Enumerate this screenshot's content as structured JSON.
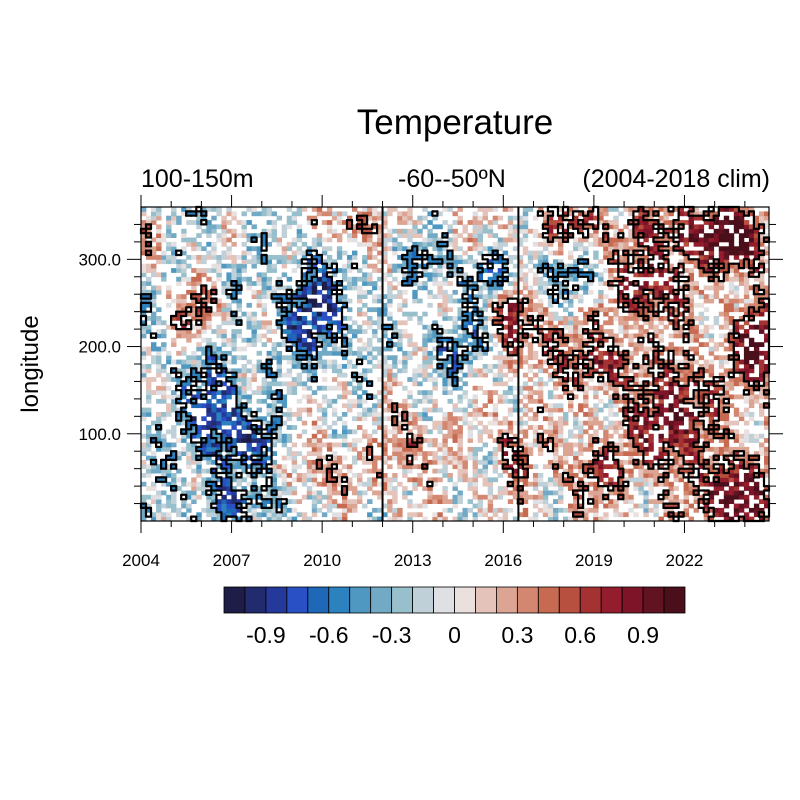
{
  "chart_data": {
    "type": "heatmap",
    "title": "Temperature",
    "subtitle_left": "100-150m",
    "subtitle_center": "-60--50ºN",
    "subtitle_right": "(2004-2018 clim)",
    "xlabel": "",
    "ylabel": "longitude",
    "xlim": [
      2004,
      2024.8
    ],
    "ylim": [
      0,
      360
    ],
    "x_ticks": [
      2004,
      2007,
      2010,
      2013,
      2016,
      2019,
      2022
    ],
    "x_tick_labels": [
      "2004",
      "2007",
      "2010",
      "2013",
      "2016",
      "2019",
      "2022"
    ],
    "y_ticks": [
      100,
      200,
      300
    ],
    "y_tick_labels": [
      "100.0",
      "200.0",
      "300.0"
    ],
    "vertical_lines": [
      2012.0,
      2016.5
    ],
    "colorbar": {
      "levels": [
        -1.1,
        -1.0,
        -0.9,
        -0.8,
        -0.7,
        -0.6,
        -0.5,
        -0.4,
        -0.3,
        -0.2,
        -0.1,
        0,
        0.1,
        0.2,
        0.3,
        0.4,
        0.5,
        0.6,
        0.7,
        0.8,
        0.9,
        1.0,
        1.1
      ],
      "colors": [
        "#1d1d47",
        "#212b6e",
        "#25399b",
        "#2950c4",
        "#1f67b7",
        "#2c82bf",
        "#4e98c2",
        "#72aac6",
        "#98bfcc",
        "#c0d0d8",
        "#dfe0e4",
        "#eae0de",
        "#e4c3bb",
        "#dca593",
        "#d38770",
        "#c76a52",
        "#b85040",
        "#a53232",
        "#931d2c",
        "#7e1428",
        "#621322",
        "#4a0f1a"
      ],
      "tick_values": [
        -0.9,
        -0.6,
        -0.3,
        0,
        0.3,
        0.6,
        0.9
      ],
      "tick_labels": [
        "-0.9",
        "-0.6",
        "-0.3",
        "0",
        "0.3",
        "0.6",
        "0.9"
      ]
    },
    "contour_level": 0.5,
    "grid": false,
    "legend": "bottom"
  }
}
